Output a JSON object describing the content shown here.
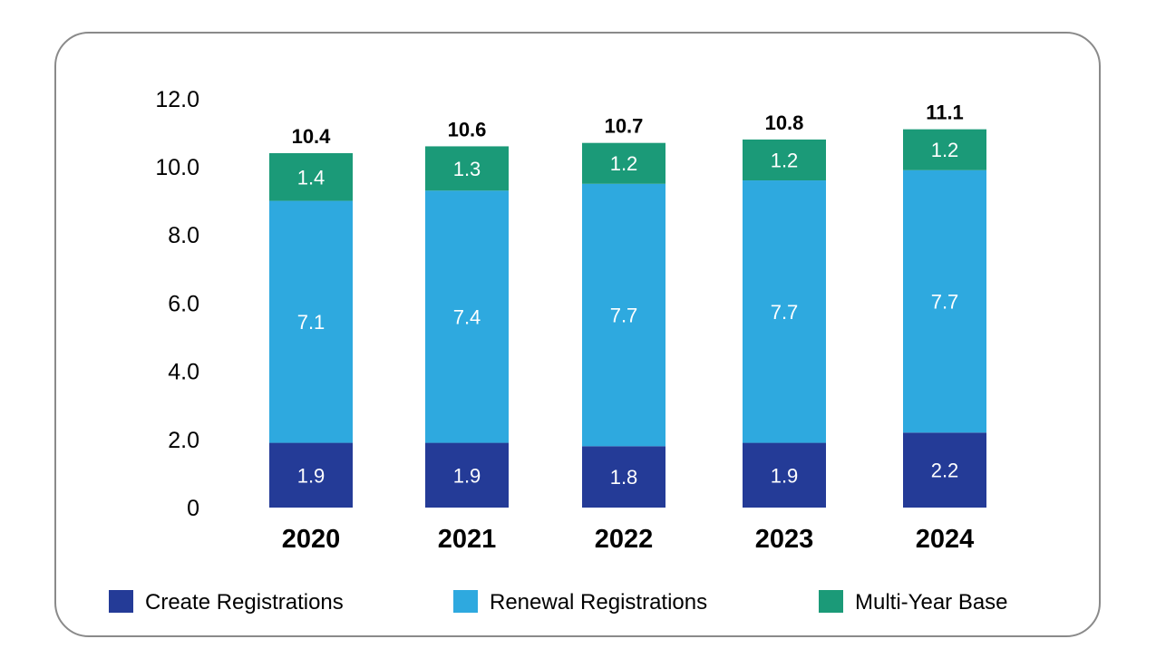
{
  "chart_data": {
    "type": "bar",
    "stacked": true,
    "categories": [
      "2020",
      "2021",
      "2022",
      "2023",
      "2024"
    ],
    "series": [
      {
        "name": "Create Registrations",
        "color": "#243b97",
        "values": [
          1.9,
          1.9,
          1.8,
          1.9,
          2.2
        ],
        "labels": [
          "1.9",
          "1.9",
          "1.8",
          "1.9",
          "2.2"
        ]
      },
      {
        "name": "Renewal Registrations",
        "color": "#2ea9df",
        "values": [
          7.1,
          7.4,
          7.7,
          7.7,
          7.7
        ],
        "labels": [
          "7.1",
          "7.4",
          "7.7",
          "7.7",
          "7.7"
        ]
      },
      {
        "name": "Multi-Year Base",
        "color": "#1b9a78",
        "values": [
          1.4,
          1.3,
          1.2,
          1.2,
          1.2
        ],
        "labels": [
          "1.4",
          "1.3",
          "1.2",
          "1.2",
          "1.2"
        ]
      }
    ],
    "totals": [
      10.4,
      10.6,
      10.7,
      10.8,
      11.1
    ],
    "total_labels": [
      "10.4",
      "10.6",
      "10.7",
      "10.8",
      "11.1"
    ],
    "yticks": [
      0,
      2,
      4,
      6,
      8,
      10,
      12
    ],
    "ytick_labels": [
      "0",
      "2.0",
      "4.0",
      "6.0",
      "8.0",
      "10.0",
      "12.0"
    ],
    "ylim": [
      0,
      12
    ],
    "title": "",
    "xlabel": "",
    "ylabel": "",
    "grid": false,
    "legend_position": "bottom"
  }
}
